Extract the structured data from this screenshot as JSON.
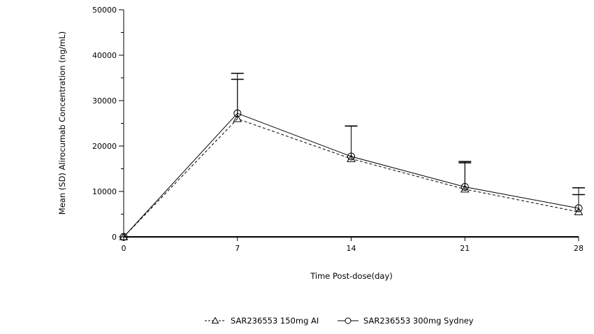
{
  "chart_data": {
    "type": "line",
    "title": "",
    "xlabel": "Time Post-dose(day)",
    "ylabel": "Mean (SD) Alirocumab Concentration (ng/mL)",
    "x": [
      0,
      7,
      14,
      21,
      28
    ],
    "xlim": [
      0,
      28
    ],
    "ylim": [
      0,
      50000
    ],
    "xticks": [
      0,
      7,
      14,
      21,
      28
    ],
    "xtick_labels": [
      "0",
      "7",
      "14",
      "21",
      "28"
    ],
    "yticks": [
      0,
      10000,
      20000,
      30000,
      40000,
      50000
    ],
    "ytick_labels": [
      "0",
      "10000",
      "20000",
      "30000",
      "40000",
      "50000"
    ],
    "grid": false,
    "legend_position": "bottom",
    "series": [
      {
        "name": "SAR236553 150mg AI",
        "values": [
          0,
          26000,
          17200,
          10500,
          5500
        ],
        "sd": [
          0,
          8700,
          7200,
          5800,
          3800
        ],
        "marker": "triangle",
        "line_style": "dashed",
        "legend_glyph": "--△-",
        "color": "#000000"
      },
      {
        "name": "SAR236553 300mg Sydney",
        "values": [
          0,
          27200,
          17700,
          11000,
          6300
        ],
        "sd": [
          0,
          8800,
          6700,
          5600,
          4500
        ],
        "marker": "circle",
        "line_style": "solid",
        "legend_glyph": "—○—",
        "color": "#000000"
      }
    ]
  }
}
